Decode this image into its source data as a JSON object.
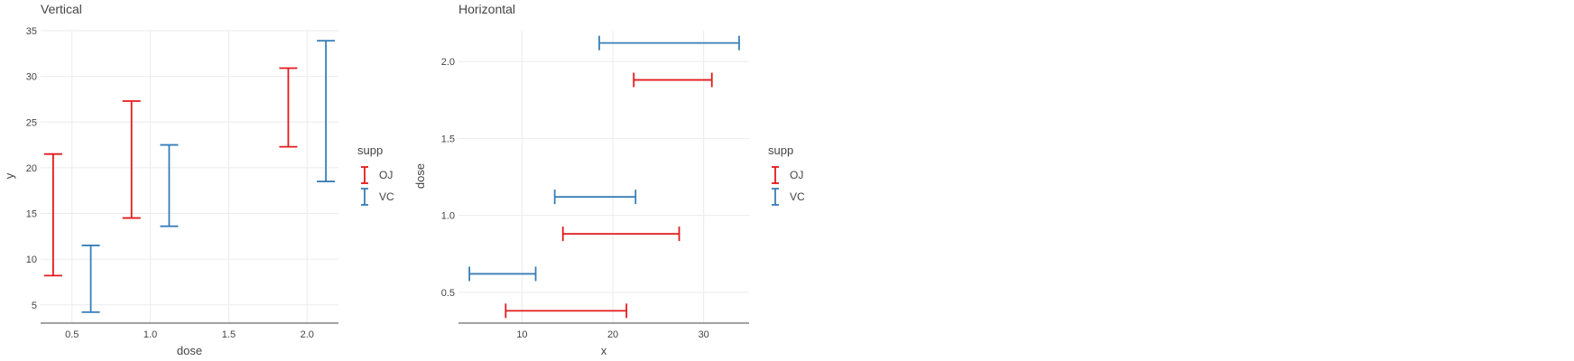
{
  "colors": {
    "OJ": "#e41a1c",
    "VC": "#377eb8"
  },
  "chart_data": [
    {
      "type": "errorbar",
      "title": "Vertical",
      "orientation": "vertical",
      "xlabel": "dose",
      "ylabel": "y",
      "xlim": [
        0.3,
        2.2
      ],
      "ylim": [
        3,
        35
      ],
      "xticks": [
        0.5,
        1.0,
        1.5,
        2.0
      ],
      "xtick_labels": [
        "0.5",
        "1.0",
        "1.5",
        "2.0"
      ],
      "yticks": [
        5,
        10,
        15,
        20,
        25,
        30,
        35
      ],
      "ytick_labels": [
        "5",
        "10",
        "15",
        "20",
        "25",
        "30",
        "35"
      ],
      "legend": {
        "title": "supp",
        "position": "right",
        "entries": [
          "OJ",
          "VC"
        ]
      },
      "series": [
        {
          "name": "OJ",
          "bars": [
            {
              "dose": 0.38,
              "low": 8.2,
              "high": 21.5
            },
            {
              "dose": 0.88,
              "low": 14.5,
              "high": 27.3
            },
            {
              "dose": 1.88,
              "low": 22.3,
              "high": 30.9
            }
          ]
        },
        {
          "name": "VC",
          "bars": [
            {
              "dose": 0.62,
              "low": 4.2,
              "high": 11.5
            },
            {
              "dose": 1.12,
              "low": 13.6,
              "high": 22.5
            },
            {
              "dose": 2.12,
              "low": 18.5,
              "high": 33.9
            }
          ]
        }
      ]
    },
    {
      "type": "errorbar",
      "title": "Horizontal",
      "orientation": "horizontal",
      "xlabel": "x",
      "ylabel": "dose",
      "xlim": [
        3,
        35
      ],
      "ylim": [
        0.3,
        2.2
      ],
      "xticks": [
        10,
        20,
        30
      ],
      "xtick_labels": [
        "10",
        "20",
        "30"
      ],
      "yticks": [
        0.5,
        1.0,
        1.5,
        2.0
      ],
      "ytick_labels": [
        "0.5",
        "1.0",
        "1.5",
        "2.0"
      ],
      "legend": {
        "title": "supp",
        "position": "right",
        "entries": [
          "OJ",
          "VC"
        ]
      },
      "series": [
        {
          "name": "OJ",
          "bars": [
            {
              "dose": 0.38,
              "low": 8.2,
              "high": 21.5
            },
            {
              "dose": 0.88,
              "low": 14.5,
              "high": 27.3
            },
            {
              "dose": 1.88,
              "low": 22.3,
              "high": 30.9
            }
          ]
        },
        {
          "name": "VC",
          "bars": [
            {
              "dose": 0.62,
              "low": 4.2,
              "high": 11.5
            },
            {
              "dose": 1.12,
              "low": 13.6,
              "high": 22.5
            },
            {
              "dose": 2.12,
              "low": 18.5,
              "high": 33.9
            }
          ]
        }
      ]
    }
  ]
}
